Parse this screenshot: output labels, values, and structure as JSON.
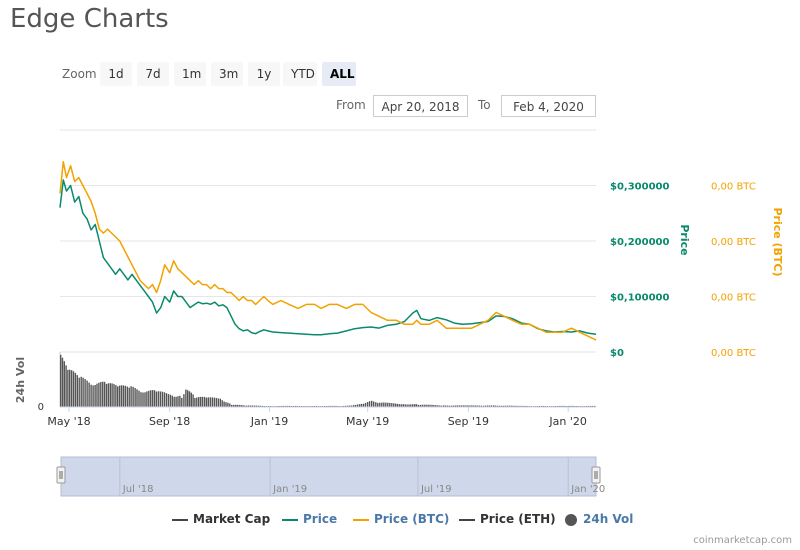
{
  "title": "Edge Charts",
  "zoom": {
    "label": "Zoom",
    "buttons": [
      "1d",
      "7d",
      "1m",
      "3m",
      "1y",
      "YTD",
      "ALL"
    ],
    "active": "ALL"
  },
  "range": {
    "from_label": "From",
    "from_value": "Apr 20, 2018",
    "to_label": "To",
    "to_value": "Feb 4, 2020"
  },
  "colors": {
    "market_cap": "#434348",
    "price": "#0a8a6c",
    "price_btc": "#f2a200",
    "price_eth": "#434348",
    "volume": "#555555",
    "navigator_fill": "#cfd8ea"
  },
  "chart_data": {
    "type": "line",
    "xaxis_ticks": [
      "May '18",
      "Sep '18",
      "Jan '19",
      "May '19",
      "Sep '19",
      "Jan '20"
    ],
    "xaxis_tick_dates": [
      "2018-05-01",
      "2018-09-01",
      "2019-01-01",
      "2019-05-01",
      "2019-09-01",
      "2020-01-01"
    ],
    "xlim": [
      "2018-04-20",
      "2020-02-04"
    ],
    "yaxis_price": {
      "label": "Price",
      "ticks": [
        "$0",
        "$0,100000",
        "$0,200000",
        "$0,300000"
      ],
      "tick_values": [
        0,
        0.1,
        0.2,
        0.3
      ],
      "ylim": [
        0,
        0.4
      ]
    },
    "yaxis_btc": {
      "label": "Price (BTC)",
      "ticks": [
        "0,00 BTC",
        "0,00 BTC",
        "0,00 BTC",
        "0,00 BTC"
      ],
      "tick_values": [
        0,
        1.4e-05,
        2.8e-05,
        4.2e-05
      ],
      "ylim": [
        0,
        5.6e-05
      ]
    },
    "yaxis_volume": {
      "label": "24h Vol",
      "ticks": [
        "0"
      ]
    },
    "series": [
      {
        "name": "Price",
        "axis": "price",
        "points": [
          [
            "2018-04-20",
            0.26
          ],
          [
            "2018-04-24",
            0.31
          ],
          [
            "2018-04-28",
            0.29
          ],
          [
            "2018-05-03",
            0.3
          ],
          [
            "2018-05-08",
            0.27
          ],
          [
            "2018-05-13",
            0.28
          ],
          [
            "2018-05-18",
            0.25
          ],
          [
            "2018-05-23",
            0.24
          ],
          [
            "2018-05-28",
            0.22
          ],
          [
            "2018-06-02",
            0.23
          ],
          [
            "2018-06-07",
            0.2
          ],
          [
            "2018-06-12",
            0.17
          ],
          [
            "2018-06-17",
            0.16
          ],
          [
            "2018-06-22",
            0.15
          ],
          [
            "2018-06-27",
            0.14
          ],
          [
            "2018-07-02",
            0.15
          ],
          [
            "2018-07-07",
            0.14
          ],
          [
            "2018-07-12",
            0.13
          ],
          [
            "2018-07-17",
            0.14
          ],
          [
            "2018-07-22",
            0.13
          ],
          [
            "2018-07-27",
            0.12
          ],
          [
            "2018-08-01",
            0.11
          ],
          [
            "2018-08-06",
            0.1
          ],
          [
            "2018-08-11",
            0.09
          ],
          [
            "2018-08-16",
            0.07
          ],
          [
            "2018-08-21",
            0.08
          ],
          [
            "2018-08-26",
            0.1
          ],
          [
            "2018-09-01",
            0.09
          ],
          [
            "2018-09-06",
            0.11
          ],
          [
            "2018-09-11",
            0.1
          ],
          [
            "2018-09-16",
            0.1
          ],
          [
            "2018-09-21",
            0.09
          ],
          [
            "2018-09-26",
            0.08
          ],
          [
            "2018-10-01",
            0.085
          ],
          [
            "2018-10-06",
            0.09
          ],
          [
            "2018-10-11",
            0.087
          ],
          [
            "2018-10-16",
            0.088
          ],
          [
            "2018-10-21",
            0.086
          ],
          [
            "2018-10-26",
            0.09
          ],
          [
            "2018-10-31",
            0.083
          ],
          [
            "2018-11-05",
            0.085
          ],
          [
            "2018-11-10",
            0.08
          ],
          [
            "2018-11-15",
            0.065
          ],
          [
            "2018-11-20",
            0.05
          ],
          [
            "2018-11-25",
            0.042
          ],
          [
            "2018-11-30",
            0.038
          ],
          [
            "2018-12-05",
            0.04
          ],
          [
            "2018-12-10",
            0.035
          ],
          [
            "2018-12-15",
            0.033
          ],
          [
            "2018-12-20",
            0.037
          ],
          [
            "2018-12-25",
            0.04
          ],
          [
            "2018-12-30",
            0.038
          ],
          [
            "2019-01-05",
            0.036
          ],
          [
            "2019-01-15",
            0.035
          ],
          [
            "2019-01-25",
            0.034
          ],
          [
            "2019-02-05",
            0.033
          ],
          [
            "2019-02-15",
            0.032
          ],
          [
            "2019-02-25",
            0.031
          ],
          [
            "2019-03-05",
            0.031
          ],
          [
            "2019-03-15",
            0.033
          ],
          [
            "2019-03-25",
            0.034
          ],
          [
            "2019-04-05",
            0.038
          ],
          [
            "2019-04-15",
            0.042
          ],
          [
            "2019-04-25",
            0.044
          ],
          [
            "2019-05-05",
            0.045
          ],
          [
            "2019-05-15",
            0.043
          ],
          [
            "2019-05-25",
            0.048
          ],
          [
            "2019-06-05",
            0.05
          ],
          [
            "2019-06-15",
            0.055
          ],
          [
            "2019-06-25",
            0.07
          ],
          [
            "2019-06-30",
            0.075
          ],
          [
            "2019-07-05",
            0.06
          ],
          [
            "2019-07-15",
            0.057
          ],
          [
            "2019-07-25",
            0.062
          ],
          [
            "2019-08-05",
            0.058
          ],
          [
            "2019-08-15",
            0.052
          ],
          [
            "2019-08-25",
            0.05
          ],
          [
            "2019-09-05",
            0.051
          ],
          [
            "2019-09-15",
            0.053
          ],
          [
            "2019-09-25",
            0.055
          ],
          [
            "2019-10-05",
            0.065
          ],
          [
            "2019-10-15",
            0.064
          ],
          [
            "2019-10-25",
            0.06
          ],
          [
            "2019-11-05",
            0.052
          ],
          [
            "2019-11-15",
            0.05
          ],
          [
            "2019-11-25",
            0.042
          ],
          [
            "2019-12-05",
            0.038
          ],
          [
            "2019-12-15",
            0.036
          ],
          [
            "2019-12-25",
            0.037
          ],
          [
            "2020-01-05",
            0.036
          ],
          [
            "2020-01-15",
            0.038
          ],
          [
            "2020-01-25",
            0.034
          ],
          [
            "2020-02-04",
            0.032
          ]
        ]
      },
      {
        "name": "Price (BTC)",
        "axis": "btc",
        "points": [
          [
            "2018-04-20",
            4e-05
          ],
          [
            "2018-04-24",
            4.8e-05
          ],
          [
            "2018-04-28",
            4.4e-05
          ],
          [
            "2018-05-03",
            4.7e-05
          ],
          [
            "2018-05-08",
            4.3e-05
          ],
          [
            "2018-05-13",
            4.4e-05
          ],
          [
            "2018-05-18",
            4.2e-05
          ],
          [
            "2018-05-23",
            4e-05
          ],
          [
            "2018-05-28",
            3.8e-05
          ],
          [
            "2018-06-02",
            3.5e-05
          ],
          [
            "2018-06-07",
            3.1e-05
          ],
          [
            "2018-06-12",
            3e-05
          ],
          [
            "2018-06-17",
            3.1e-05
          ],
          [
            "2018-06-22",
            3e-05
          ],
          [
            "2018-06-27",
            2.9e-05
          ],
          [
            "2018-07-02",
            2.8e-05
          ],
          [
            "2018-07-07",
            2.6e-05
          ],
          [
            "2018-07-12",
            2.4e-05
          ],
          [
            "2018-07-17",
            2.2e-05
          ],
          [
            "2018-07-22",
            2e-05
          ],
          [
            "2018-07-27",
            1.8e-05
          ],
          [
            "2018-08-01",
            1.7e-05
          ],
          [
            "2018-08-06",
            1.6e-05
          ],
          [
            "2018-08-11",
            1.7e-05
          ],
          [
            "2018-08-16",
            1.5e-05
          ],
          [
            "2018-08-21",
            1.8e-05
          ],
          [
            "2018-08-26",
            2.2e-05
          ],
          [
            "2018-09-01",
            2e-05
          ],
          [
            "2018-09-06",
            2.3e-05
          ],
          [
            "2018-09-11",
            2.1e-05
          ],
          [
            "2018-09-16",
            2e-05
          ],
          [
            "2018-09-21",
            1.9e-05
          ],
          [
            "2018-09-26",
            1.8e-05
          ],
          [
            "2018-10-01",
            1.7e-05
          ],
          [
            "2018-10-06",
            1.8e-05
          ],
          [
            "2018-10-11",
            1.7e-05
          ],
          [
            "2018-10-16",
            1.7e-05
          ],
          [
            "2018-10-21",
            1.6e-05
          ],
          [
            "2018-10-26",
            1.7e-05
          ],
          [
            "2018-10-31",
            1.6e-05
          ],
          [
            "2018-11-05",
            1.6e-05
          ],
          [
            "2018-11-10",
            1.5e-05
          ],
          [
            "2018-11-15",
            1.5e-05
          ],
          [
            "2018-11-20",
            1.4e-05
          ],
          [
            "2018-11-25",
            1.3e-05
          ],
          [
            "2018-11-30",
            1.4e-05
          ],
          [
            "2018-12-05",
            1.3e-05
          ],
          [
            "2018-12-10",
            1.3e-05
          ],
          [
            "2018-12-15",
            1.2e-05
          ],
          [
            "2018-12-20",
            1.3e-05
          ],
          [
            "2018-12-25",
            1.4e-05
          ],
          [
            "2018-12-30",
            1.3e-05
          ],
          [
            "2019-01-05",
            1.2e-05
          ],
          [
            "2019-01-15",
            1.3e-05
          ],
          [
            "2019-01-25",
            1.2e-05
          ],
          [
            "2019-02-05",
            1.1e-05
          ],
          [
            "2019-02-15",
            1.2e-05
          ],
          [
            "2019-02-25",
            1.2e-05
          ],
          [
            "2019-03-05",
            1.1e-05
          ],
          [
            "2019-03-15",
            1.2e-05
          ],
          [
            "2019-03-25",
            1.2e-05
          ],
          [
            "2019-04-05",
            1.1e-05
          ],
          [
            "2019-04-15",
            1.2e-05
          ],
          [
            "2019-04-25",
            1.2e-05
          ],
          [
            "2019-05-05",
            1e-05
          ],
          [
            "2019-05-15",
            9e-06
          ],
          [
            "2019-05-25",
            8e-06
          ],
          [
            "2019-06-05",
            8e-06
          ],
          [
            "2019-06-15",
            7e-06
          ],
          [
            "2019-06-25",
            7e-06
          ],
          [
            "2019-06-30",
            8e-06
          ],
          [
            "2019-07-05",
            7e-06
          ],
          [
            "2019-07-15",
            7e-06
          ],
          [
            "2019-07-25",
            8e-06
          ],
          [
            "2019-08-05",
            6e-06
          ],
          [
            "2019-08-15",
            6e-06
          ],
          [
            "2019-08-25",
            6e-06
          ],
          [
            "2019-09-05",
            6e-06
          ],
          [
            "2019-09-15",
            7e-06
          ],
          [
            "2019-09-25",
            8e-06
          ],
          [
            "2019-10-05",
            1e-05
          ],
          [
            "2019-10-15",
            9e-06
          ],
          [
            "2019-10-25",
            8e-06
          ],
          [
            "2019-11-05",
            7e-06
          ],
          [
            "2019-11-15",
            7e-06
          ],
          [
            "2019-11-25",
            6e-06
          ],
          [
            "2019-12-05",
            5e-06
          ],
          [
            "2019-12-15",
            5e-06
          ],
          [
            "2019-12-25",
            5e-06
          ],
          [
            "2020-01-05",
            6e-06
          ],
          [
            "2020-01-15",
            5e-06
          ],
          [
            "2020-01-25",
            4e-06
          ],
          [
            "2020-02-04",
            3e-06
          ]
        ]
      }
    ],
    "volume": {
      "name": "24h Vol",
      "relative_levels": [
        [
          "2018-04-20",
          0.95
        ],
        [
          "2018-05-01",
          0.7
        ],
        [
          "2018-05-15",
          0.55
        ],
        [
          "2018-06-01",
          0.5
        ],
        [
          "2018-06-15",
          0.45
        ],
        [
          "2018-07-01",
          0.4
        ],
        [
          "2018-07-15",
          0.38
        ],
        [
          "2018-08-01",
          0.33
        ],
        [
          "2018-08-15",
          0.3
        ],
        [
          "2018-09-01",
          0.25
        ],
        [
          "2018-09-15",
          0.22
        ],
        [
          "2018-09-20",
          0.35
        ],
        [
          "2018-10-01",
          0.2
        ],
        [
          "2018-10-15",
          0.18
        ],
        [
          "2018-11-01",
          0.17
        ],
        [
          "2018-11-15",
          0.05
        ],
        [
          "2018-12-01",
          0.03
        ],
        [
          "2019-01-01",
          0.02
        ],
        [
          "2019-02-01",
          0.02
        ],
        [
          "2019-03-01",
          0.02
        ],
        [
          "2019-04-01",
          0.02
        ],
        [
          "2019-04-25",
          0.06
        ],
        [
          "2019-05-05",
          0.12
        ],
        [
          "2019-05-15",
          0.09
        ],
        [
          "2019-06-01",
          0.07
        ],
        [
          "2019-06-15",
          0.06
        ],
        [
          "2019-07-01",
          0.05
        ],
        [
          "2019-08-01",
          0.03
        ],
        [
          "2019-09-01",
          0.03
        ],
        [
          "2019-10-01",
          0.03
        ],
        [
          "2019-11-01",
          0.02
        ],
        [
          "2019-12-01",
          0.02
        ],
        [
          "2020-01-01",
          0.02
        ],
        [
          "2020-02-04",
          0.02
        ]
      ]
    },
    "navigator": {
      "ticks": [
        "Jul '18",
        "Jan '19",
        "Jul '19",
        "Jan '20"
      ],
      "tick_dates": [
        "2018-07-01",
        "2019-01-01",
        "2019-07-01",
        "2020-01-01"
      ]
    },
    "legend": [
      {
        "name": "Market Cap",
        "symbol": "line",
        "color": "#434348"
      },
      {
        "name": "Price",
        "symbol": "line",
        "color": "#0a8a6c"
      },
      {
        "name": "Price (BTC)",
        "symbol": "line",
        "color": "#f2a200"
      },
      {
        "name": "Price (ETH)",
        "symbol": "line",
        "color": "#434348"
      },
      {
        "name": "24h Vol",
        "symbol": "circle",
        "color": "#555555"
      }
    ],
    "grid": true,
    "legend_placement": "bottom-center"
  },
  "credit": "coinmarketcap.com"
}
